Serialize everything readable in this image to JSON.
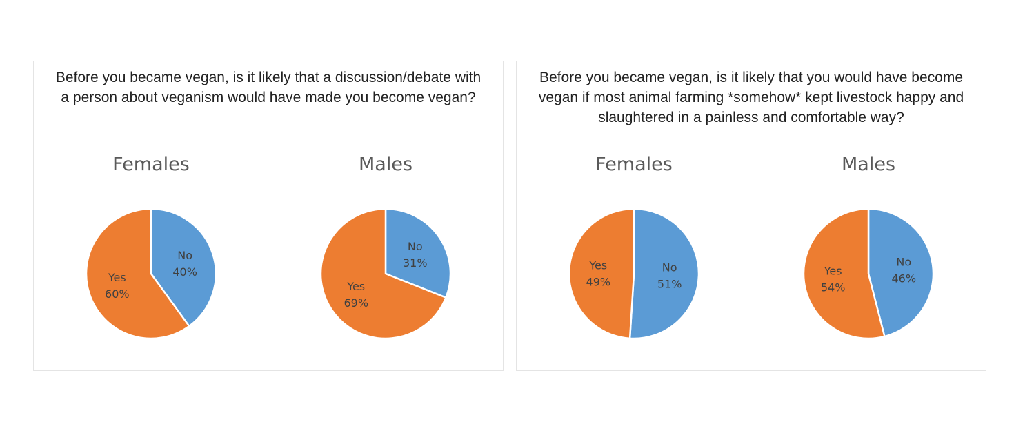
{
  "chart_data": [
    {
      "type": "pie",
      "title": "Before you became vegan, is it likely that a discussion/debate with a person about veganism would have made you become vegan?",
      "subcharts": [
        {
          "title": "Females",
          "categories": [
            "No",
            "Yes"
          ],
          "values": [
            40,
            60
          ],
          "labels": [
            "40%",
            "60%"
          ]
        },
        {
          "title": "Males",
          "categories": [
            "No",
            "Yes"
          ],
          "values": [
            31,
            69
          ],
          "labels": [
            "31%",
            "69%"
          ]
        }
      ]
    },
    {
      "type": "pie",
      "title": "Before you became vegan, is it likely that you would have become vegan if most animal farming *somehow* kept livestock happy and slaughtered in a painless and comfortable way?",
      "subcharts": [
        {
          "title": "Females",
          "categories": [
            "No",
            "Yes"
          ],
          "values": [
            51,
            49
          ],
          "labels": [
            "51%",
            "49%"
          ]
        },
        {
          "title": "Males",
          "categories": [
            "No",
            "Yes"
          ],
          "values": [
            46,
            54
          ],
          "labels": [
            "46%",
            "54%"
          ]
        }
      ]
    }
  ],
  "colors": {
    "No": "#5b9bd5",
    "Yes": "#ed7d31"
  }
}
